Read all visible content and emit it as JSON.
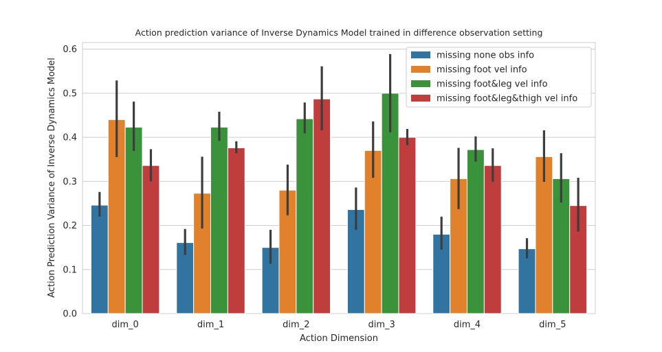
{
  "chart_data": {
    "type": "bar",
    "title": "Action prediction variance of Inverse Dynamics Model trained in difference observation setting",
    "xlabel": "Action Dimension",
    "ylabel": "Action Prediction Variance of Inverse Dynamics Model",
    "ylim": [
      0,
      0.615
    ],
    "yticks": [
      "0.0",
      "0.1",
      "0.2",
      "0.3",
      "0.4",
      "0.5",
      "0.6"
    ],
    "grid": true,
    "legend_position": "top-right",
    "categories": [
      "dim_0",
      "dim_1",
      "dim_2",
      "dim_3",
      "dim_4",
      "dim_5"
    ],
    "series": [
      {
        "name": "missing none obs info",
        "color": "#3274a1",
        "values": [
          0.246,
          0.161,
          0.15,
          0.236,
          0.18,
          0.147
        ],
        "err_low": [
          0.22,
          0.133,
          0.113,
          0.19,
          0.145,
          0.125
        ],
        "err_high": [
          0.276,
          0.192,
          0.19,
          0.286,
          0.22,
          0.171
        ]
      },
      {
        "name": "missing foot vel info",
        "color": "#e1812c",
        "values": [
          0.44,
          0.273,
          0.28,
          0.37,
          0.306,
          0.356
        ],
        "err_low": [
          0.355,
          0.193,
          0.223,
          0.308,
          0.237,
          0.299
        ],
        "err_high": [
          0.529,
          0.356,
          0.338,
          0.436,
          0.376,
          0.416
        ]
      },
      {
        "name": "missing foot&leg vel info",
        "color": "#3a923a",
        "values": [
          0.423,
          0.423,
          0.442,
          0.5,
          0.372,
          0.306
        ],
        "err_low": [
          0.369,
          0.392,
          0.409,
          0.411,
          0.345,
          0.252
        ],
        "err_high": [
          0.481,
          0.458,
          0.479,
          0.589,
          0.402,
          0.364
        ]
      },
      {
        "name": "missing foot&leg&thigh vel info",
        "color": "#c03d3e",
        "values": [
          0.336,
          0.376,
          0.487,
          0.4,
          0.336,
          0.245
        ],
        "err_low": [
          0.3,
          0.364,
          0.416,
          0.382,
          0.299,
          0.186
        ],
        "err_high": [
          0.373,
          0.391,
          0.561,
          0.419,
          0.375,
          0.308
        ]
      }
    ]
  }
}
